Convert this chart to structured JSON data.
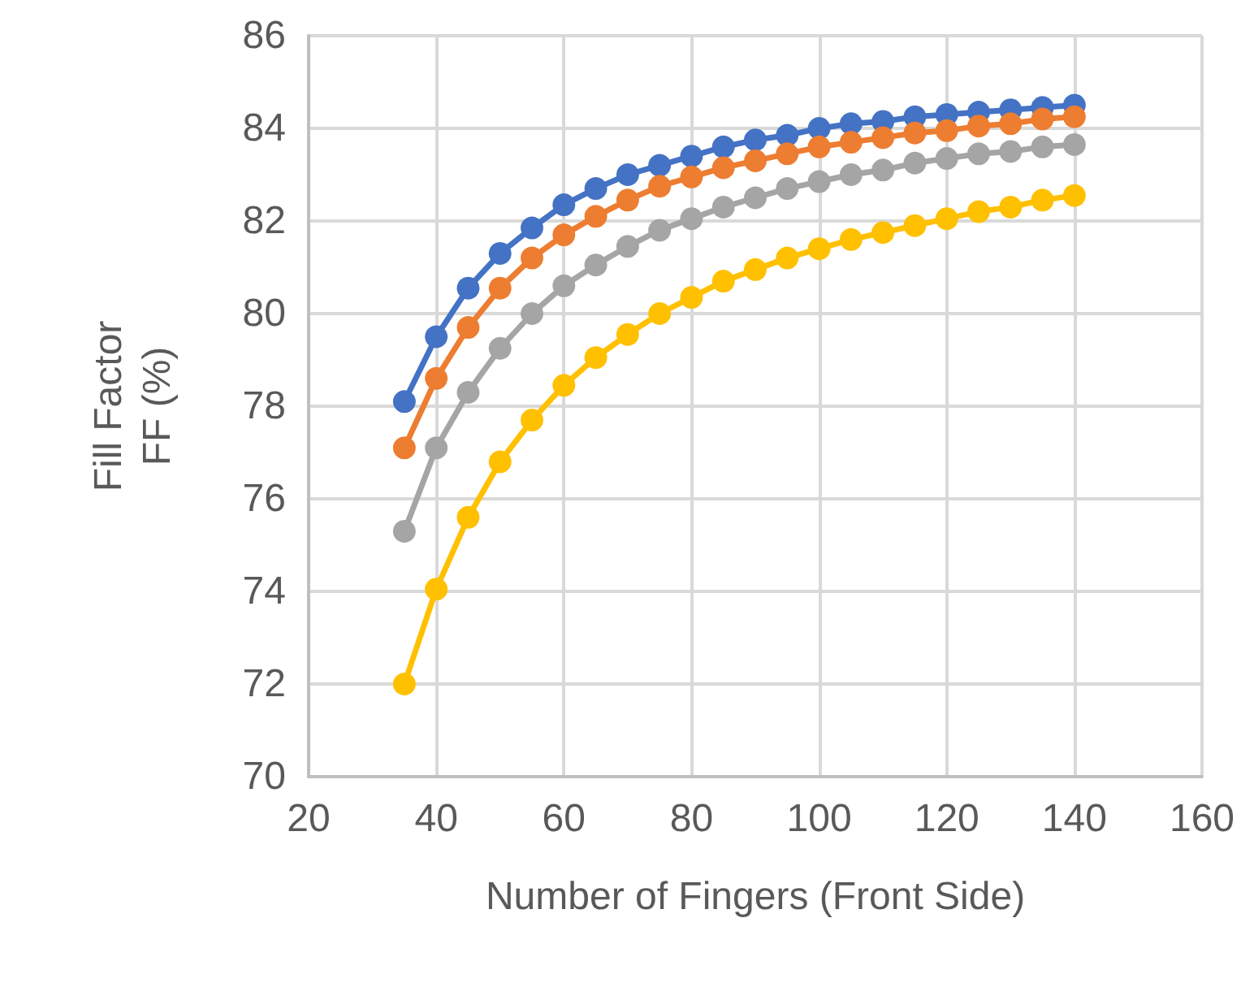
{
  "chart_data": {
    "type": "line",
    "xlabel": "Number of Fingers (Front Side)",
    "ylabel": "Fill Factor\nFF (%)",
    "x": [
      35,
      40,
      45,
      50,
      55,
      60,
      65,
      70,
      75,
      80,
      85,
      90,
      95,
      100,
      105,
      110,
      115,
      120,
      125,
      130,
      135,
      140
    ],
    "series": [
      {
        "color": "#4472c4",
        "values": [
          78.1,
          79.5,
          80.55,
          81.3,
          81.85,
          82.35,
          82.7,
          83.0,
          83.2,
          83.4,
          83.6,
          83.75,
          83.85,
          84.0,
          84.1,
          84.15,
          84.25,
          84.3,
          84.35,
          84.4,
          84.45,
          84.5
        ]
      },
      {
        "color": "#ed7d31",
        "values": [
          77.1,
          78.6,
          79.7,
          80.55,
          81.2,
          81.7,
          82.1,
          82.45,
          82.75,
          82.95,
          83.15,
          83.3,
          83.45,
          83.6,
          83.7,
          83.8,
          83.9,
          83.95,
          84.05,
          84.1,
          84.2,
          84.25
        ]
      },
      {
        "color": "#a5a5a5",
        "values": [
          75.3,
          77.1,
          78.3,
          79.25,
          80.0,
          80.6,
          81.05,
          81.45,
          81.8,
          82.05,
          82.3,
          82.5,
          82.7,
          82.85,
          83.0,
          83.1,
          83.25,
          83.35,
          83.45,
          83.5,
          83.6,
          83.65
        ]
      },
      {
        "color": "#ffc000",
        "values": [
          72.0,
          74.05,
          75.6,
          76.8,
          77.7,
          78.45,
          79.05,
          79.55,
          80.0,
          80.35,
          80.7,
          80.95,
          81.2,
          81.4,
          81.6,
          81.75,
          81.9,
          82.05,
          82.2,
          82.3,
          82.45,
          82.55
        ]
      }
    ],
    "xlim": [
      20,
      160
    ],
    "xticks": [
      20,
      40,
      60,
      80,
      100,
      120,
      140,
      160
    ],
    "ylim": [
      70,
      86
    ],
    "yticks": [
      70,
      72,
      74,
      76,
      78,
      80,
      82,
      84,
      86
    ],
    "grid": true,
    "marker": "circle",
    "line_style": "solid"
  }
}
